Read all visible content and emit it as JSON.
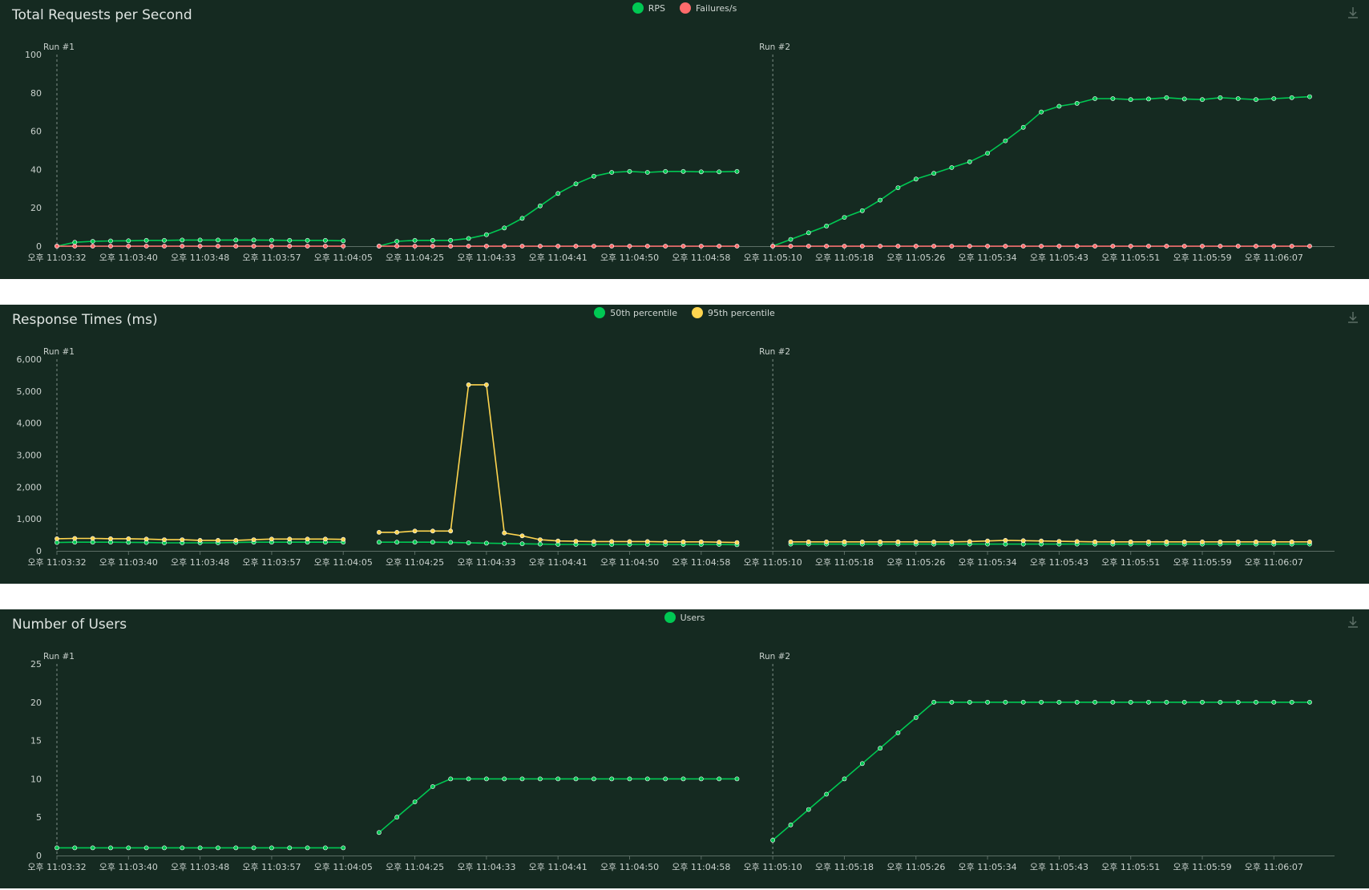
{
  "colors": {
    "background": "#152a21",
    "green": "#00c853",
    "red": "#ff6b6b",
    "yellow": "#ffd54f",
    "axis": "#5c6e66",
    "text": "#c9d1cd"
  },
  "icons": {
    "download": "download-icon"
  },
  "x_labels": [
    "오후 11:03:32",
    "오후 11:03:40",
    "오후 11:03:48",
    "오후 11:03:57",
    "오후 11:04:05",
    "오후 11:04:25",
    "오후 11:04:33",
    "오후 11:04:41",
    "오후 11:04:50",
    "오후 11:04:58",
    "오후 11:05:10",
    "오후 11:05:18",
    "오후 11:05:26",
    "오후 11:05:34",
    "오후 11:05:43",
    "오후 11:05:51",
    "오후 11:05:59",
    "오후 11:06:07"
  ],
  "chart_data": [
    {
      "type": "line",
      "title": "Total Requests per Second",
      "ylim": [
        0,
        100
      ],
      "yticks": [
        "0",
        "20",
        "40",
        "60",
        "80",
        "100"
      ],
      "ytick_values": [
        0,
        20,
        40,
        60,
        80,
        100
      ],
      "run_markers": [
        {
          "label": "Run #1",
          "at": 0
        },
        {
          "label": "Run #2",
          "at": 40
        }
      ],
      "segments": [
        [
          0,
          16
        ],
        [
          18,
          39
        ],
        [
          40,
          70
        ]
      ],
      "series": [
        {
          "name": "RPS",
          "color": "#00c853",
          "values": [
            0,
            2,
            2.5,
            2.7,
            2.8,
            3,
            3,
            3.2,
            3.2,
            3.2,
            3.2,
            3.2,
            3.1,
            3,
            3,
            3,
            2.8,
            null,
            0,
            2.5,
            3,
            3,
            3,
            4,
            6,
            9.5,
            14.5,
            21,
            27.5,
            32.5,
            36.5,
            38.5,
            39,
            38.5,
            39,
            39,
            38.8,
            38.8,
            39,
            null,
            0,
            3.5,
            7,
            10.5,
            15,
            18.5,
            24,
            30.5,
            35,
            38,
            41,
            44,
            48.5,
            55,
            62,
            70,
            73,
            74.5,
            77,
            77,
            76.5,
            76.8,
            77.5,
            76.8,
            76.5,
            77.5,
            77,
            76.5,
            77,
            77.5,
            78
          ]
        },
        {
          "name": "Failures/s",
          "color": "#ff6b6b",
          "values": [
            0,
            0,
            0,
            0,
            0,
            0,
            0,
            0,
            0,
            0,
            0,
            0,
            0,
            0,
            0,
            0,
            0,
            null,
            0,
            0,
            0,
            0,
            0,
            0,
            0,
            0,
            0,
            0,
            0,
            0,
            0,
            0,
            0,
            0,
            0,
            0,
            0,
            0,
            0,
            null,
            0,
            0,
            0,
            0,
            0,
            0,
            0,
            0,
            0,
            0,
            0,
            0,
            0,
            0,
            0,
            0,
            0,
            0,
            0,
            0,
            0,
            0,
            0,
            0,
            0,
            0,
            0,
            0,
            0,
            0,
            0
          ]
        }
      ]
    },
    {
      "type": "line",
      "title": "Response Times (ms)",
      "ylim": [
        0,
        6000
      ],
      "yticks": [
        "0",
        "1,000",
        "2,000",
        "3,000",
        "4,000",
        "5,000",
        "6,000"
      ],
      "ytick_values": [
        0,
        1000,
        2000,
        3000,
        4000,
        5000,
        6000
      ],
      "run_markers": [
        {
          "label": "Run #1",
          "at": 0
        },
        {
          "label": "Run #2",
          "at": 40
        }
      ],
      "segments": [
        [
          0,
          16
        ],
        [
          18,
          39
        ],
        [
          41,
          70
        ]
      ],
      "series": [
        {
          "name": "50th percentile",
          "color": "#00c853",
          "values": [
            260,
            270,
            270,
            270,
            265,
            260,
            250,
            250,
            250,
            250,
            260,
            270,
            270,
            270,
            270,
            270,
            270,
            null,
            270,
            270,
            270,
            270,
            265,
            250,
            240,
            230,
            220,
            210,
            200,
            200,
            200,
            200,
            200,
            200,
            200,
            200,
            200,
            200,
            190,
            null,
            null,
            210,
            210,
            210,
            210,
            210,
            210,
            210,
            210,
            210,
            210,
            210,
            210,
            210,
            210,
            210,
            210,
            210,
            210,
            210,
            210,
            210,
            210,
            210,
            210,
            210,
            210,
            210,
            210,
            210,
            210
          ]
        },
        {
          "name": "95th percentile",
          "color": "#ffd54f",
          "values": [
            380,
            390,
            390,
            380,
            380,
            370,
            350,
            350,
            330,
            330,
            330,
            350,
            370,
            370,
            370,
            370,
            360,
            null,
            580,
            580,
            620,
            620,
            620,
            5200,
            5200,
            560,
            470,
            350,
            310,
            300,
            290,
            290,
            290,
            290,
            280,
            280,
            280,
            270,
            260,
            null,
            null,
            280,
            280,
            280,
            280,
            280,
            280,
            280,
            280,
            280,
            280,
            290,
            310,
            330,
            320,
            310,
            300,
            290,
            280,
            280,
            280,
            280,
            280,
            280,
            280,
            280,
            280,
            280,
            280,
            280,
            280
          ]
        }
      ]
    },
    {
      "type": "line",
      "title": "Number of Users",
      "ylim": [
        0,
        25
      ],
      "yticks": [
        "0",
        "5",
        "10",
        "15",
        "20",
        "25"
      ],
      "ytick_values": [
        0,
        5,
        10,
        15,
        20,
        25
      ],
      "run_markers": [
        {
          "label": "Run #1",
          "at": 0
        },
        {
          "label": "Run #2",
          "at": 40
        }
      ],
      "segments": [
        [
          0,
          16
        ],
        [
          18,
          39
        ],
        [
          40,
          70
        ]
      ],
      "series": [
        {
          "name": "Users",
          "color": "#00c853",
          "values": [
            1,
            1,
            1,
            1,
            1,
            1,
            1,
            1,
            1,
            1,
            1,
            1,
            1,
            1,
            1,
            1,
            1,
            null,
            3,
            5,
            7,
            9,
            10,
            10,
            10,
            10,
            10,
            10,
            10,
            10,
            10,
            10,
            10,
            10,
            10,
            10,
            10,
            10,
            10,
            null,
            2,
            4,
            6,
            8,
            10,
            12,
            14,
            16,
            18,
            20,
            20,
            20,
            20,
            20,
            20,
            20,
            20,
            20,
            20,
            20,
            20,
            20,
            20,
            20,
            20,
            20,
            20,
            20,
            20,
            20,
            20
          ]
        }
      ]
    }
  ]
}
